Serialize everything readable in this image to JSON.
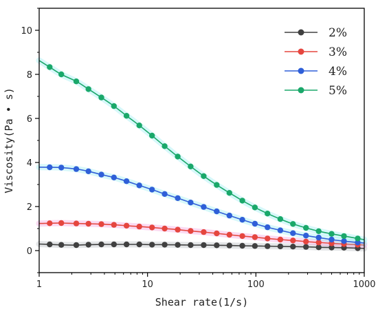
{
  "chart_data": {
    "type": "line",
    "xlabel": "Shear rate(1/s)",
    "ylabel": "Viscosity(Pa • s)",
    "xscale": "log",
    "xlim": [
      1,
      1000
    ],
    "ylim": [
      -1,
      11
    ],
    "xticks": [
      1,
      10,
      100,
      1000
    ],
    "xtick_labels": [
      "1",
      "10",
      "100",
      "1000"
    ],
    "yticks": [
      0,
      2,
      4,
      6,
      8,
      10
    ],
    "ytick_labels": [
      "0",
      "2",
      "4",
      "6",
      "8",
      "10"
    ],
    "grid": false,
    "legend_position": "top-right",
    "x": [
      1.25,
      1.6,
      2.2,
      2.85,
      3.75,
      4.9,
      6.4,
      8.4,
      11,
      14.4,
      19,
      25,
      33,
      43.5,
      57,
      75,
      98,
      128,
      168,
      220,
      290,
      380,
      500,
      650,
      870
    ],
    "series": [
      {
        "name": "2%",
        "color": "#404040",
        "shadow_color": "#9aa0a8",
        "values": [
          0.28,
          0.26,
          0.25,
          0.27,
          0.28,
          0.28,
          0.28,
          0.28,
          0.27,
          0.27,
          0.26,
          0.25,
          0.25,
          0.24,
          0.23,
          0.22,
          0.21,
          0.2,
          0.19,
          0.18,
          0.17,
          0.15,
          0.14,
          0.13,
          0.11
        ]
      },
      {
        "name": "3%",
        "color": "#e5463f",
        "shadow_color": "#f07ad0",
        "values": [
          1.24,
          1.25,
          1.23,
          1.22,
          1.2,
          1.17,
          1.13,
          1.09,
          1.05,
          1.0,
          0.95,
          0.89,
          0.84,
          0.78,
          0.72,
          0.66,
          0.61,
          0.55,
          0.5,
          0.46,
          0.41,
          0.37,
          0.33,
          0.3,
          0.27
        ]
      },
      {
        "name": "4%",
        "color": "#2f5fd8",
        "shadow_color": "#6ee6ec",
        "values": [
          3.78,
          3.77,
          3.7,
          3.6,
          3.45,
          3.32,
          3.15,
          2.96,
          2.77,
          2.57,
          2.38,
          2.18,
          1.98,
          1.78,
          1.59,
          1.4,
          1.22,
          1.06,
          0.92,
          0.79,
          0.68,
          0.59,
          0.5,
          0.43,
          0.37
        ]
      },
      {
        "name": "5%",
        "color": "#1aa86a",
        "shadow_color": "#6ee6ec",
        "values": [
          8.33,
          8.0,
          7.68,
          7.33,
          6.95,
          6.56,
          6.12,
          5.68,
          5.22,
          4.74,
          4.27,
          3.82,
          3.38,
          2.98,
          2.62,
          2.27,
          1.96,
          1.68,
          1.43,
          1.21,
          1.03,
          0.88,
          0.76,
          0.66,
          0.55
        ]
      }
    ]
  }
}
